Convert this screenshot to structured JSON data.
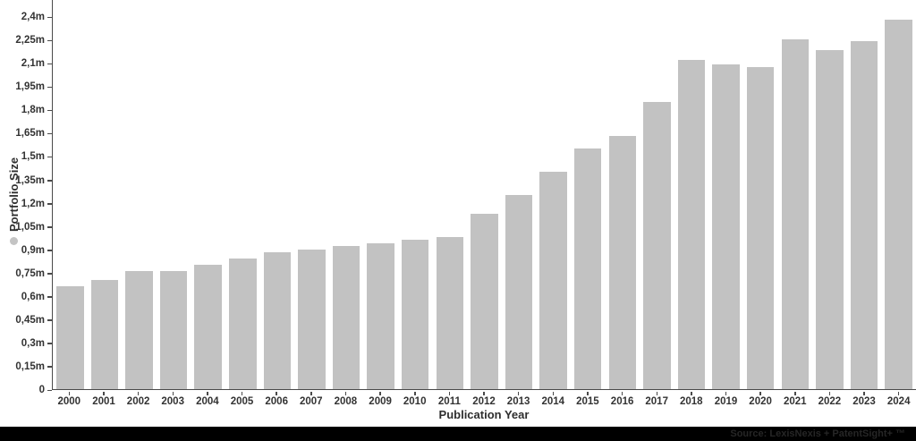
{
  "chart_data": {
    "type": "bar",
    "title": "",
    "xlabel": "Publication Year",
    "ylabel": "Portfolio Size",
    "unit": "millions of patents (m)",
    "categories": [
      "2000",
      "2001",
      "2002",
      "2003",
      "2004",
      "2005",
      "2006",
      "2007",
      "2008",
      "2009",
      "2010",
      "2011",
      "2012",
      "2013",
      "2014",
      "2015",
      "2016",
      "2017",
      "2018",
      "2019",
      "2020",
      "2021",
      "2022",
      "2023",
      "2024"
    ],
    "values": [
      0.66,
      0.7,
      0.76,
      0.76,
      0.8,
      0.84,
      0.88,
      0.9,
      0.92,
      0.94,
      0.96,
      0.98,
      1.13,
      1.25,
      1.4,
      1.55,
      1.63,
      1.85,
      2.12,
      2.09,
      2.07,
      2.25,
      2.18,
      2.24,
      2.38
    ],
    "yticks": [
      {
        "v": 0.0,
        "label": "0"
      },
      {
        "v": 0.15,
        "label": "0,15m"
      },
      {
        "v": 0.3,
        "label": "0,3m"
      },
      {
        "v": 0.45,
        "label": "0,45m"
      },
      {
        "v": 0.6,
        "label": "0,6m"
      },
      {
        "v": 0.75,
        "label": "0,75m"
      },
      {
        "v": 0.9,
        "label": "0,9m"
      },
      {
        "v": 1.05,
        "label": "1,05m"
      },
      {
        "v": 1.2,
        "label": "1,2m"
      },
      {
        "v": 1.35,
        "label": "1,35m"
      },
      {
        "v": 1.5,
        "label": "1,5m"
      },
      {
        "v": 1.65,
        "label": "1,65m"
      },
      {
        "v": 1.8,
        "label": "1,8m"
      },
      {
        "v": 1.95,
        "label": "1,95m"
      },
      {
        "v": 2.1,
        "label": "2,1m"
      },
      {
        "v": 2.25,
        "label": "2,25m"
      },
      {
        "v": 2.4,
        "label": "2,4m"
      }
    ],
    "ylim": [
      0,
      2.51
    ],
    "grid": false,
    "legend": {
      "series_name": "Portfolio Size",
      "marker": "dot"
    }
  },
  "colors": {
    "bar": "#c2c2c2",
    "axis": "#4a4a4a",
    "tick_label": "#333333",
    "legend_dot": "#c4c4c4",
    "source_bg": "#000000",
    "source_text": "#262626"
  },
  "source_bar": {
    "text": "Source: LexisNexis + PatentSight+ ™"
  }
}
